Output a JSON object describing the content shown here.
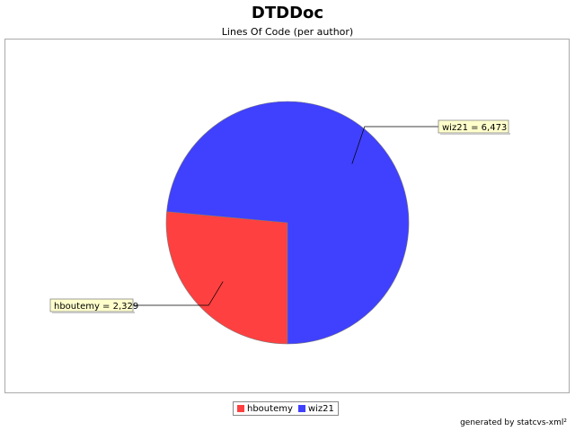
{
  "chart_data": {
    "type": "pie",
    "title": "DTDDoc",
    "subtitle": "Lines Of Code (per author)",
    "slices": [
      {
        "label": "hboutemy",
        "value": 2329,
        "display": "hboutemy = 2,329",
        "color": "#ff4040"
      },
      {
        "label": "wiz21",
        "value": 6473,
        "display": "wiz21 = 6,473",
        "color": "#4040ff"
      }
    ],
    "legend": {
      "placement": "bottom",
      "items": [
        {
          "label": "hboutemy",
          "color": "#ff4040"
        },
        {
          "label": "wiz21",
          "color": "#4040ff"
        }
      ]
    }
  },
  "footer": "generated by statcvs-xml²",
  "colors": {
    "label_background": "#ffffcc",
    "plot_border": "#aaaaaa"
  }
}
